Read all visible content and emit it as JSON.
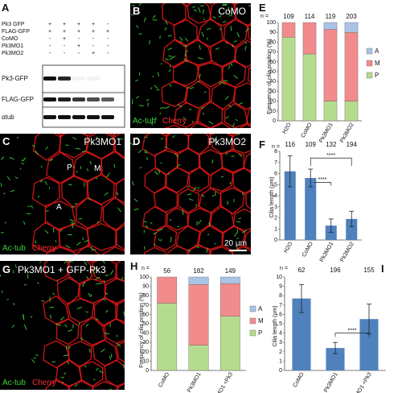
{
  "panels": {
    "A": {
      "label": "A",
      "condition_rows": [
        "Pk3 GFP",
        "FLAG-GFP",
        "CoMO",
        "Pk3MO1",
        "Pk3MO2"
      ],
      "matrix": [
        [
          "+",
          "+",
          "+",
          "+",
          "-"
        ],
        [
          "+",
          "+",
          "+",
          "+",
          "+"
        ],
        [
          "-",
          "+",
          "-",
          "-",
          "-"
        ],
        [
          "-",
          "-",
          "+",
          "-",
          "-"
        ],
        [
          "-",
          "-",
          "-",
          "+",
          "-"
        ]
      ],
      "blots": [
        "Pk3-GFP",
        "FLAG-GFP",
        "αtub"
      ],
      "band_intensity": [
        [
          1.0,
          0.9,
          0.05,
          0.05,
          0.0
        ],
        [
          1.0,
          0.95,
          0.85,
          0.75,
          0.7
        ],
        [
          1.0,
          1.0,
          1.0,
          1.0,
          1.0
        ]
      ]
    },
    "B": {
      "label": "B",
      "title": "CoMO",
      "stain_green": "Ac-tub",
      "stain_red": "Cherry"
    },
    "C": {
      "label": "C",
      "title": "Pk3MO1",
      "stain_green": "Ac-tub",
      "stain_red": "Cherry",
      "annotations": [
        "P",
        "M",
        "A"
      ]
    },
    "D": {
      "label": "D",
      "title": "Pk3MO2",
      "scale_bar": "20 μm"
    },
    "G": {
      "label": "G",
      "title": "Pk3MO1 + GFP-Pk3",
      "stain_green": "Ac-tub",
      "stain_red": "Cherry"
    },
    "E": {
      "label": "E",
      "n_label": "n =",
      "ylabel": "Frequency of cilia position (%)"
    },
    "F": {
      "label": "F",
      "n_label": "n =",
      "ylabel": "Cilia length (μm)",
      "sig": "****"
    },
    "H": {
      "label": "H",
      "n_label": "n =",
      "ylabel": "Frequency of cilia position (%)"
    },
    "I": {
      "label": "I",
      "n_label": "n =",
      "ylabel": "Cilia length (μm)",
      "sig": "****"
    }
  },
  "colors": {
    "A": "#a9c4e6",
    "M": "#f28b8b",
    "P": "#b5dc8e",
    "bar": "#4f81bd",
    "cell_red": "#e31818",
    "cilia_green": "#3cd63c"
  },
  "chart_data": [
    {
      "panel": "E",
      "type": "bar",
      "stacked": true,
      "categories": [
        "H2O",
        "CoMO",
        "Pk3MO1",
        "Pk3MO2"
      ],
      "n": [
        "109",
        "114",
        "119",
        "203"
      ],
      "series": [
        {
          "name": "P",
          "values": [
            85,
            68,
            20,
            20
          ]
        },
        {
          "name": "M",
          "values": [
            15,
            32,
            73,
            70
          ]
        },
        {
          "name": "A",
          "values": [
            0,
            0,
            7,
            10
          ]
        }
      ],
      "ylim": [
        0,
        100
      ],
      "yticks": [
        0,
        10,
        20,
        30,
        40,
        50,
        60,
        70,
        80,
        90,
        100
      ],
      "legend": "right"
    },
    {
      "panel": "F",
      "type": "bar",
      "categories": [
        "H2O",
        "CoMO",
        "Pk3MO1",
        "Pk3MO2"
      ],
      "n": [
        "116",
        "109",
        "132",
        "194"
      ],
      "values": [
        6.2,
        5.6,
        1.3,
        1.9
      ],
      "errors": [
        1.4,
        0.8,
        0.6,
        0.7
      ],
      "ylim": [
        0,
        8
      ],
      "yticks": [
        0,
        1,
        2,
        3,
        4,
        5,
        6,
        7,
        8
      ]
    },
    {
      "panel": "H",
      "type": "bar",
      "stacked": true,
      "categories": [
        "CoMO",
        "Pk3MO1",
        "Pk3MO1 +Pk3"
      ],
      "n": [
        "56",
        "182",
        "149"
      ],
      "series": [
        {
          "name": "P",
          "values": [
            72,
            27,
            58
          ]
        },
        {
          "name": "M",
          "values": [
            28,
            65,
            35
          ]
        },
        {
          "name": "A",
          "values": [
            0,
            8,
            7
          ]
        }
      ],
      "ylim": [
        0,
        100
      ],
      "yticks": [
        0,
        10,
        20,
        30,
        40,
        50,
        60,
        70,
        80,
        90,
        100
      ],
      "legend": "right"
    },
    {
      "panel": "I",
      "type": "bar",
      "categories": [
        "CoMO",
        "Pk3MO1",
        "Pk3MO1 +Pk3"
      ],
      "n": [
        "62",
        "196",
        "155"
      ],
      "values": [
        7.7,
        2.4,
        5.5
      ],
      "errors": [
        1.5,
        0.6,
        1.6
      ],
      "ylim": [
        0,
        10
      ],
      "yticks": [
        0,
        1,
        2,
        3,
        4,
        5,
        6,
        7,
        8,
        9,
        10
      ]
    }
  ]
}
